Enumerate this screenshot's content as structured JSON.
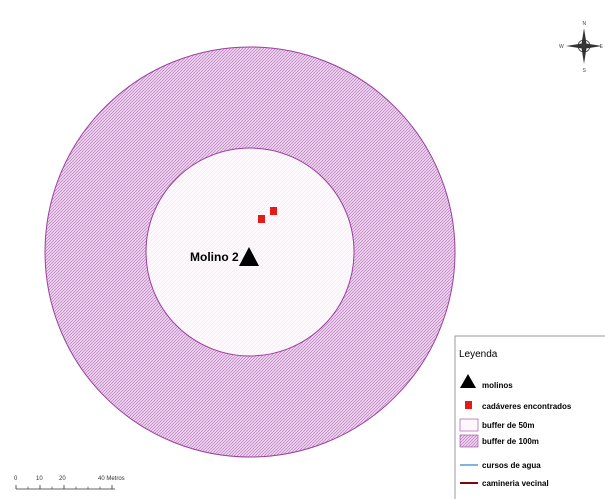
{
  "map": {
    "site_label": "Molino 2",
    "colors": {
      "buffer_100_stroke": "#9c3fa0",
      "buffer_100_fill": "#e7c8e8",
      "buffer_50_fill": "#fbf6fb",
      "buffer_50_stroke": "#9c3fa0",
      "carcass": "#e41b1b",
      "molino": "#000000",
      "water": "#7fb3e0",
      "road": "#7a0a0a"
    }
  },
  "compass": {
    "n": "N",
    "s": "S",
    "e": "E",
    "w": "W"
  },
  "scale": {
    "ticks": [
      "0",
      "10",
      "20",
      "40 Metros"
    ]
  },
  "legend": {
    "title": "Leyenda",
    "items": [
      {
        "label": "molinos",
        "symbol": "black-triangle"
      },
      {
        "label": "cadáveres encontrados",
        "symbol": "red-square"
      },
      {
        "label": "buffer de 50m",
        "symbol": "light-box"
      },
      {
        "label": "buffer de 100m",
        "symbol": "hatched-box"
      },
      {
        "label": "cursos de agua",
        "symbol": "blue-line"
      },
      {
        "label": "camineria vecinal",
        "symbol": "dark-red-line"
      }
    ]
  }
}
